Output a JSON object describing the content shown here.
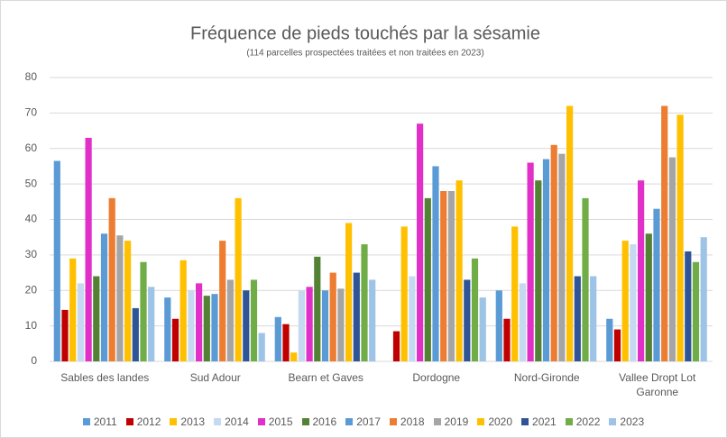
{
  "chart_data": {
    "type": "bar",
    "title": "Fréquence de pieds touchés par la sésamie",
    "subtitle": "(114 parcelles prospectées traitées et non traitées en 2023)",
    "categories": [
      "Sables des landes",
      "Sud Adour",
      "Bearn et Gaves",
      "Dordogne",
      "Nord-Gironde",
      "Vallee Dropt Lot Garonne"
    ],
    "series": [
      {
        "name": "2011",
        "color": "#5b9bd5",
        "values": [
          56.5,
          18,
          12.5,
          null,
          20,
          12
        ]
      },
      {
        "name": "2012",
        "color": "#c00000",
        "values": [
          14.5,
          12,
          10.5,
          8.5,
          12,
          9
        ]
      },
      {
        "name": "2013",
        "color": "#ffc000",
        "values": [
          29,
          28.5,
          2.5,
          38,
          38,
          34
        ]
      },
      {
        "name": "2014",
        "color": "#c5d9f1",
        "values": [
          22,
          20,
          20,
          24,
          22,
          33
        ]
      },
      {
        "name": "2015",
        "color": "#e030c8",
        "values": [
          63,
          22,
          21,
          67,
          56,
          51
        ]
      },
      {
        "name": "2016",
        "color": "#548235",
        "values": [
          24,
          18.5,
          29.5,
          46,
          51,
          36
        ]
      },
      {
        "name": "2017",
        "color": "#5b9bd5",
        "values": [
          36,
          19,
          20,
          55,
          57,
          43
        ]
      },
      {
        "name": "2018",
        "color": "#ed7d31",
        "values": [
          46,
          34,
          25,
          48,
          61,
          72
        ]
      },
      {
        "name": "2019",
        "color": "#a5a5a5",
        "values": [
          35.5,
          23,
          20.5,
          48,
          58.5,
          57.5
        ]
      },
      {
        "name": "2020",
        "color": "#ffc000",
        "values": [
          34,
          46,
          39,
          51,
          72,
          69.5
        ]
      },
      {
        "name": "2021",
        "color": "#2f5597",
        "values": [
          15,
          20,
          25,
          23,
          24,
          31
        ]
      },
      {
        "name": "2022",
        "color": "#70ad47",
        "values": [
          28,
          23,
          33,
          29,
          46,
          28
        ]
      },
      {
        "name": "2023",
        "color": "#9dc3e6",
        "values": [
          21,
          8,
          23,
          18,
          24,
          35
        ]
      }
    ],
    "ylim": [
      0,
      80
    ],
    "yticks": [
      0,
      10,
      20,
      30,
      40,
      50,
      60,
      70,
      80
    ],
    "grid": true
  }
}
